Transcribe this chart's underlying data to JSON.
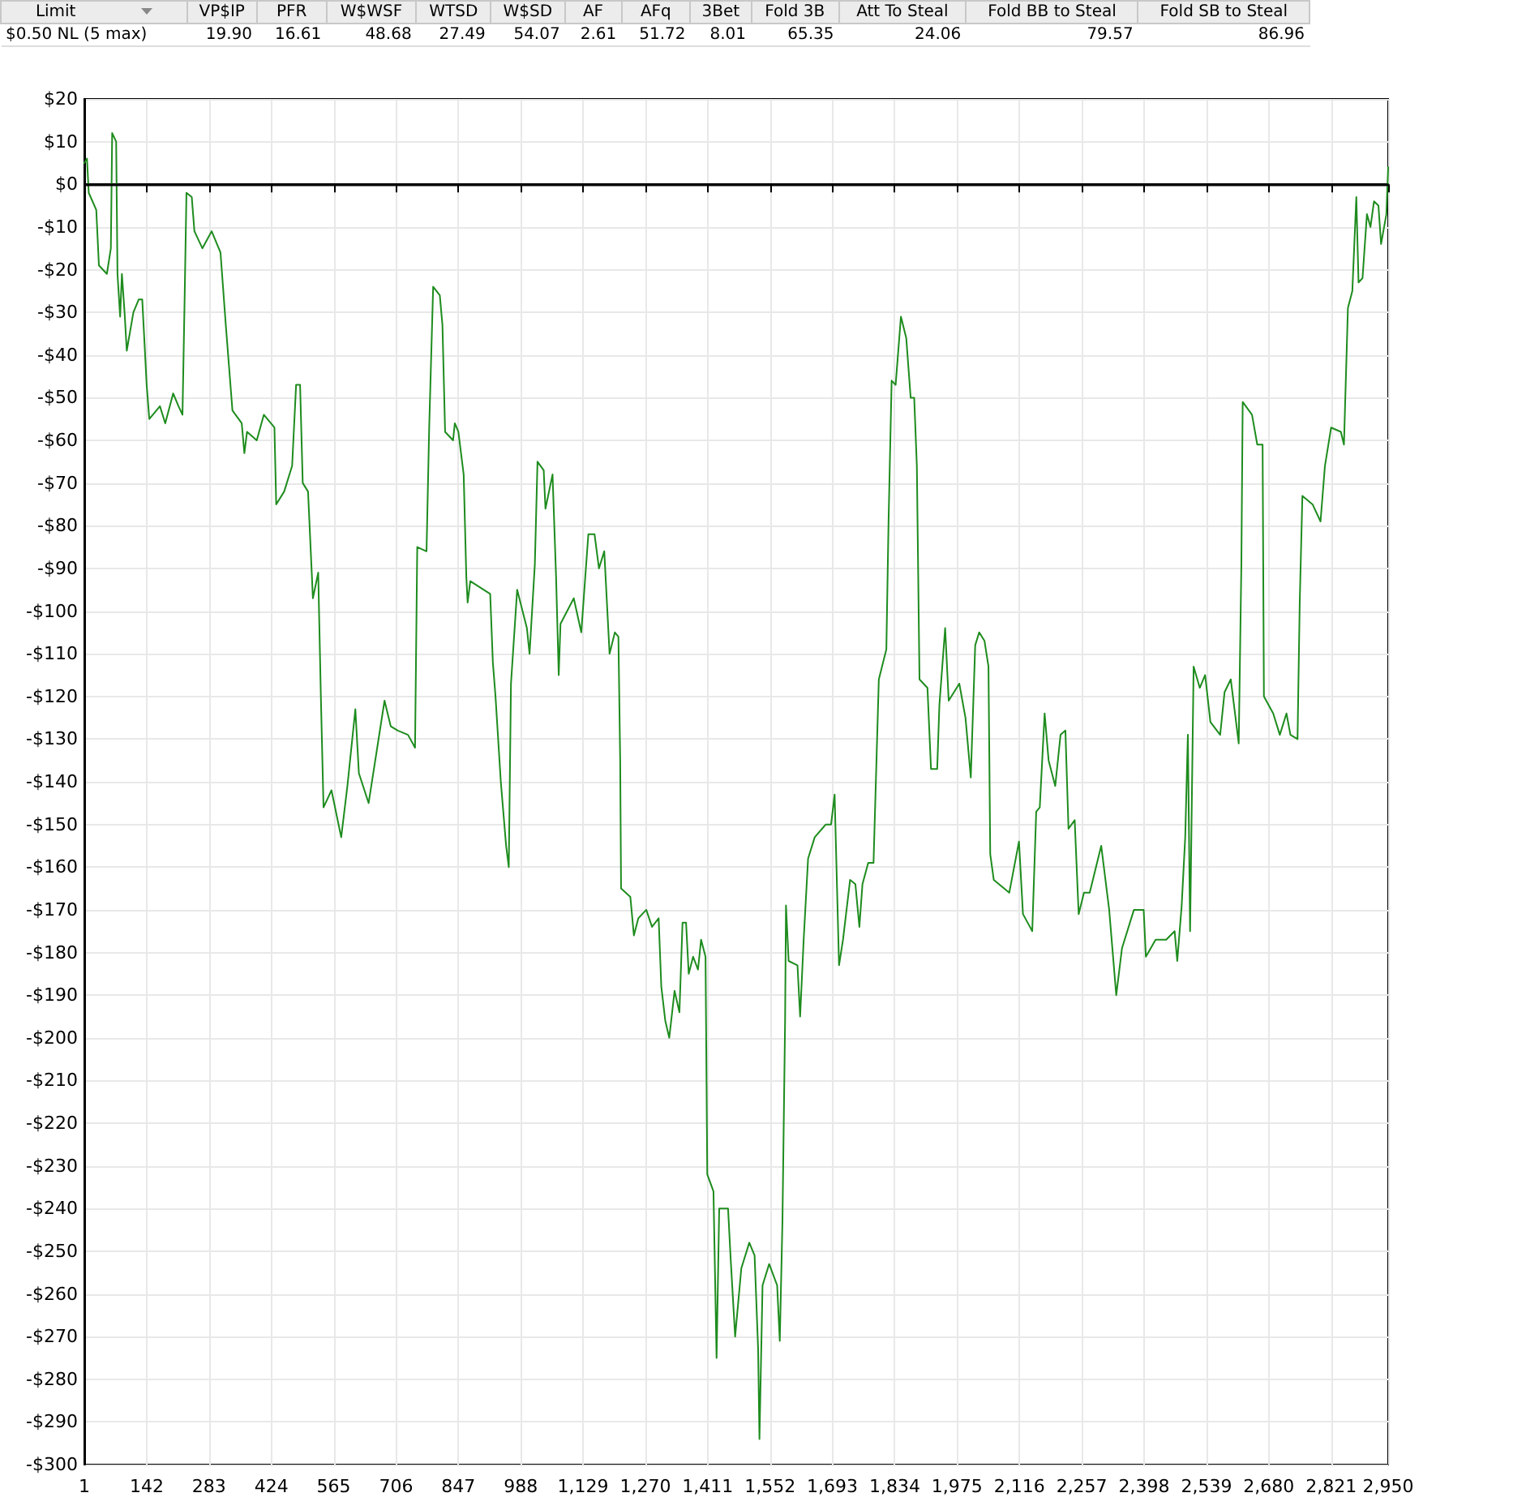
{
  "chart_data": [
    {
      "type": "other",
      "annotations": [
        "Limit",
        "VP$IP",
        "PFR",
        "W$WSF",
        "WTSD",
        "W$SD",
        "AF",
        "AFq",
        "3Bet",
        "Fold 3B",
        "Att To Steal",
        "Fold BB to Steal",
        "Fold SB to Steal",
        "$0.50 NL (5 max)",
        "19.90",
        "16.61",
        "48.68",
        "27.49",
        "54.07",
        "2.61",
        "51.72",
        "8.01",
        "65.35",
        "24.06",
        "79.57",
        "86.96"
      ]
    },
    {
      "type": "line",
      "grid": true,
      "marker": "none",
      "line_style": "solid",
      "xlim": [
        1,
        2950
      ],
      "ylim": [
        -300,
        20
      ],
      "xticks": [
        1,
        142,
        283,
        424,
        565,
        706,
        847,
        988,
        {
          "value": 1129,
          "label": "1,129"
        },
        {
          "value": 1270,
          "label": "1,270"
        },
        {
          "value": 1411,
          "label": "1,411"
        },
        {
          "value": 1552,
          "label": "1,552"
        },
        {
          "value": 1693,
          "label": "1,693"
        },
        {
          "value": 1834,
          "label": "1,834"
        },
        {
          "value": 1975,
          "label": "1,975"
        },
        {
          "value": 2116,
          "label": "2,116"
        },
        {
          "value": 2257,
          "label": "2,257"
        },
        {
          "value": 2398,
          "label": "2,398"
        },
        {
          "value": 2539,
          "label": "2,539"
        },
        {
          "value": 2680,
          "label": "2,680"
        },
        {
          "value": 2821,
          "label": "2,821"
        },
        {
          "value": 2950,
          "label": "2,950"
        }
      ],
      "yticks": [
        {
          "value": 20,
          "label": "$20"
        },
        {
          "value": 10,
          "label": "$10"
        },
        {
          "value": 0,
          "label": "$0"
        },
        {
          "value": -10,
          "label": "-$10"
        },
        {
          "value": -20,
          "label": "-$20"
        },
        {
          "value": -30,
          "label": "-$30"
        },
        {
          "value": -40,
          "label": "-$40"
        },
        {
          "value": -50,
          "label": "-$50"
        },
        {
          "value": -60,
          "label": "-$60"
        },
        {
          "value": -70,
          "label": "-$70"
        },
        {
          "value": -80,
          "label": "-$80"
        },
        {
          "value": -90,
          "label": "-$90"
        },
        {
          "value": -100,
          "label": "-$100"
        },
        {
          "value": -110,
          "label": "-$110"
        },
        {
          "value": -120,
          "label": "-$120"
        },
        {
          "value": -130,
          "label": "-$130"
        },
        {
          "value": -140,
          "label": "-$140"
        },
        {
          "value": -150,
          "label": "-$150"
        },
        {
          "value": -160,
          "label": "-$160"
        },
        {
          "value": -170,
          "label": "-$170"
        },
        {
          "value": -180,
          "label": "-$180"
        },
        {
          "value": -190,
          "label": "-$190"
        },
        {
          "value": -200,
          "label": "-$200"
        },
        {
          "value": -210,
          "label": "-$210"
        },
        {
          "value": -220,
          "label": "-$220"
        },
        {
          "value": -230,
          "label": "-$230"
        },
        {
          "value": -240,
          "label": "-$240"
        },
        {
          "value": -250,
          "label": "-$250"
        },
        {
          "value": -260,
          "label": "-$260"
        },
        {
          "value": -270,
          "label": "-$270"
        },
        {
          "value": -280,
          "label": "-$280"
        },
        {
          "value": -290,
          "label": "-$290"
        },
        {
          "value": -300,
          "label": "-$300"
        }
      ],
      "ref_lines": [
        {
          "axis": "y",
          "value": 0,
          "color": "#000000"
        }
      ],
      "series": [
        {
          "color": "#1e8c1e",
          "x": [
            1,
            7,
            11,
            28,
            34,
            52,
            61,
            64,
            73,
            76,
            82,
            86,
            92,
            97,
            112,
            124,
            132,
            142,
            148,
            172,
            184,
            202,
            214,
            223,
            228,
            232,
            244,
            250,
            268,
            289,
            309,
            321,
            336,
            357,
            363,
            369,
            391,
            407,
            431,
            435,
            453,
            471,
            480,
            489,
            495,
            507,
            518,
            530,
            536,
            542,
            560,
            582,
            596,
            614,
            622,
            644,
            680,
            694,
            710,
            733,
            749,
            754,
            775,
            781,
            790,
            805,
            811,
            817,
            835,
            839,
            847,
            859,
            865,
            868,
            874,
            919,
            925,
            931,
            943,
            955,
            961,
            966,
            980,
            1002,
            1008,
            1020,
            1026,
            1040,
            1044,
            1060,
            1068,
            1074,
            1078,
            1108,
            1125,
            1141,
            1155,
            1165,
            1177,
            1189,
            1201,
            1209,
            1213,
            1215,
            1236,
            1244,
            1254,
            1272,
            1285,
            1300,
            1306,
            1315,
            1324,
            1336,
            1347,
            1354,
            1362,
            1368,
            1378,
            1389,
            1396,
            1406,
            1410,
            1424,
            1431,
            1437,
            1457,
            1463,
            1473,
            1487,
            1505,
            1517,
            1525,
            1528,
            1535,
            1550,
            1568,
            1574,
            1580,
            1586,
            1588,
            1594,
            1614,
            1620,
            1628,
            1638,
            1653,
            1678,
            1690,
            1698,
            1708,
            1717,
            1733,
            1745,
            1754,
            1761,
            1774,
            1786,
            1798,
            1815,
            1820,
            1827,
            1836,
            1848,
            1860,
            1870,
            1878,
            1884,
            1890,
            1908,
            1916,
            1930,
            1935,
            1948,
            1956,
            1980,
            1994,
            2006,
            2016,
            2025,
            2037,
            2046,
            2050,
            2058,
            2093,
            2115,
            2124,
            2145,
            2154,
            2162,
            2173,
            2182,
            2197,
            2209,
            2220,
            2227,
            2241,
            2250,
            2262,
            2275,
            2301,
            2319,
            2335,
            2348,
            2375,
            2397,
            2402,
            2424,
            2448,
            2467,
            2473,
            2483,
            2491,
            2497,
            2502,
            2510,
            2524,
            2536,
            2548,
            2570,
            2580,
            2594,
            2612,
            2618,
            2621,
            2642,
            2654,
            2666,
            2669,
            2690,
            2705,
            2720,
            2729,
            2745,
            2750,
            2756,
            2779,
            2797,
            2807,
            2821,
            2843,
            2850,
            2859,
            2869,
            2878,
            2883,
            2892,
            2902,
            2910,
            2918,
            2928,
            2934,
            2946,
            2950
          ],
          "values": [
            5,
            6,
            -2,
            -6,
            -19,
            -21,
            -15,
            12,
            10,
            -21,
            -31,
            -21,
            -30,
            -39,
            -30,
            -27,
            -27,
            -47,
            -55,
            -52,
            -56,
            -49,
            -52,
            -54,
            -26,
            -2,
            -3,
            -11,
            -15,
            -11,
            -16,
            -33,
            -53,
            -56,
            -63,
            -58,
            -60,
            -54,
            -57,
            -75,
            -72,
            -66,
            -47,
            -47,
            -70,
            -72,
            -97,
            -91,
            -120,
            -146,
            -142,
            -153,
            -141,
            -123,
            -138,
            -145,
            -121,
            -127,
            -128,
            -129,
            -132,
            -85,
            -86,
            -57,
            -24,
            -26,
            -33,
            -58,
            -60,
            -56,
            -58,
            -68,
            -92,
            -98,
            -93,
            -96,
            -112,
            -120,
            -140,
            -155,
            -160,
            -117,
            -95,
            -104,
            -110,
            -89,
            -65,
            -67,
            -76,
            -68,
            -92,
            -115,
            -103,
            -97,
            -105,
            -82,
            -82,
            -90,
            -86,
            -110,
            -105,
            -106,
            -135,
            -165,
            -167,
            -176,
            -172,
            -170,
            -174,
            -172,
            -188,
            -196,
            -200,
            -189,
            -194,
            -173,
            -173,
            -185,
            -181,
            -184,
            -177,
            -181,
            -232,
            -236,
            -275,
            -240,
            -240,
            -252,
            -270,
            -254,
            -248,
            -251,
            -273,
            -294,
            -258,
            -253,
            -258,
            -271,
            -243,
            -196,
            -169,
            -182,
            -183,
            -195,
            -177,
            -158,
            -153,
            -150,
            -150,
            -143,
            -183,
            -177,
            -163,
            -164,
            -174,
            -164,
            -159,
            -159,
            -116,
            -109,
            -79,
            -46,
            -47,
            -31,
            -36,
            -50,
            -50,
            -66,
            -116,
            -118,
            -137,
            -137,
            -122,
            -104,
            -121,
            -117,
            -125,
            -139,
            -108,
            -105,
            -107,
            -113,
            -157,
            -163,
            -166,
            -154,
            -171,
            -175,
            -147,
            -146,
            -124,
            -135,
            -141,
            -129,
            -128,
            -151,
            -149,
            -171,
            -166,
            -166,
            -155,
            -170,
            -190,
            -179,
            -170,
            -170,
            -181,
            -177,
            -177,
            -175,
            -182,
            -169,
            -153,
            -129,
            -175,
            -113,
            -118,
            -115,
            -126,
            -129,
            -119,
            -116,
            -131,
            -89,
            -51,
            -54,
            -61,
            -61,
            -120,
            -124,
            -129,
            -124,
            -129,
            -130,
            -98,
            -73,
            -75,
            -79,
            -66,
            -57,
            -58,
            -61,
            -29,
            -25,
            -3,
            -23,
            -22,
            -7,
            -10,
            -4,
            -5,
            -14,
            -7,
            4
          ]
        }
      ]
    }
  ]
}
